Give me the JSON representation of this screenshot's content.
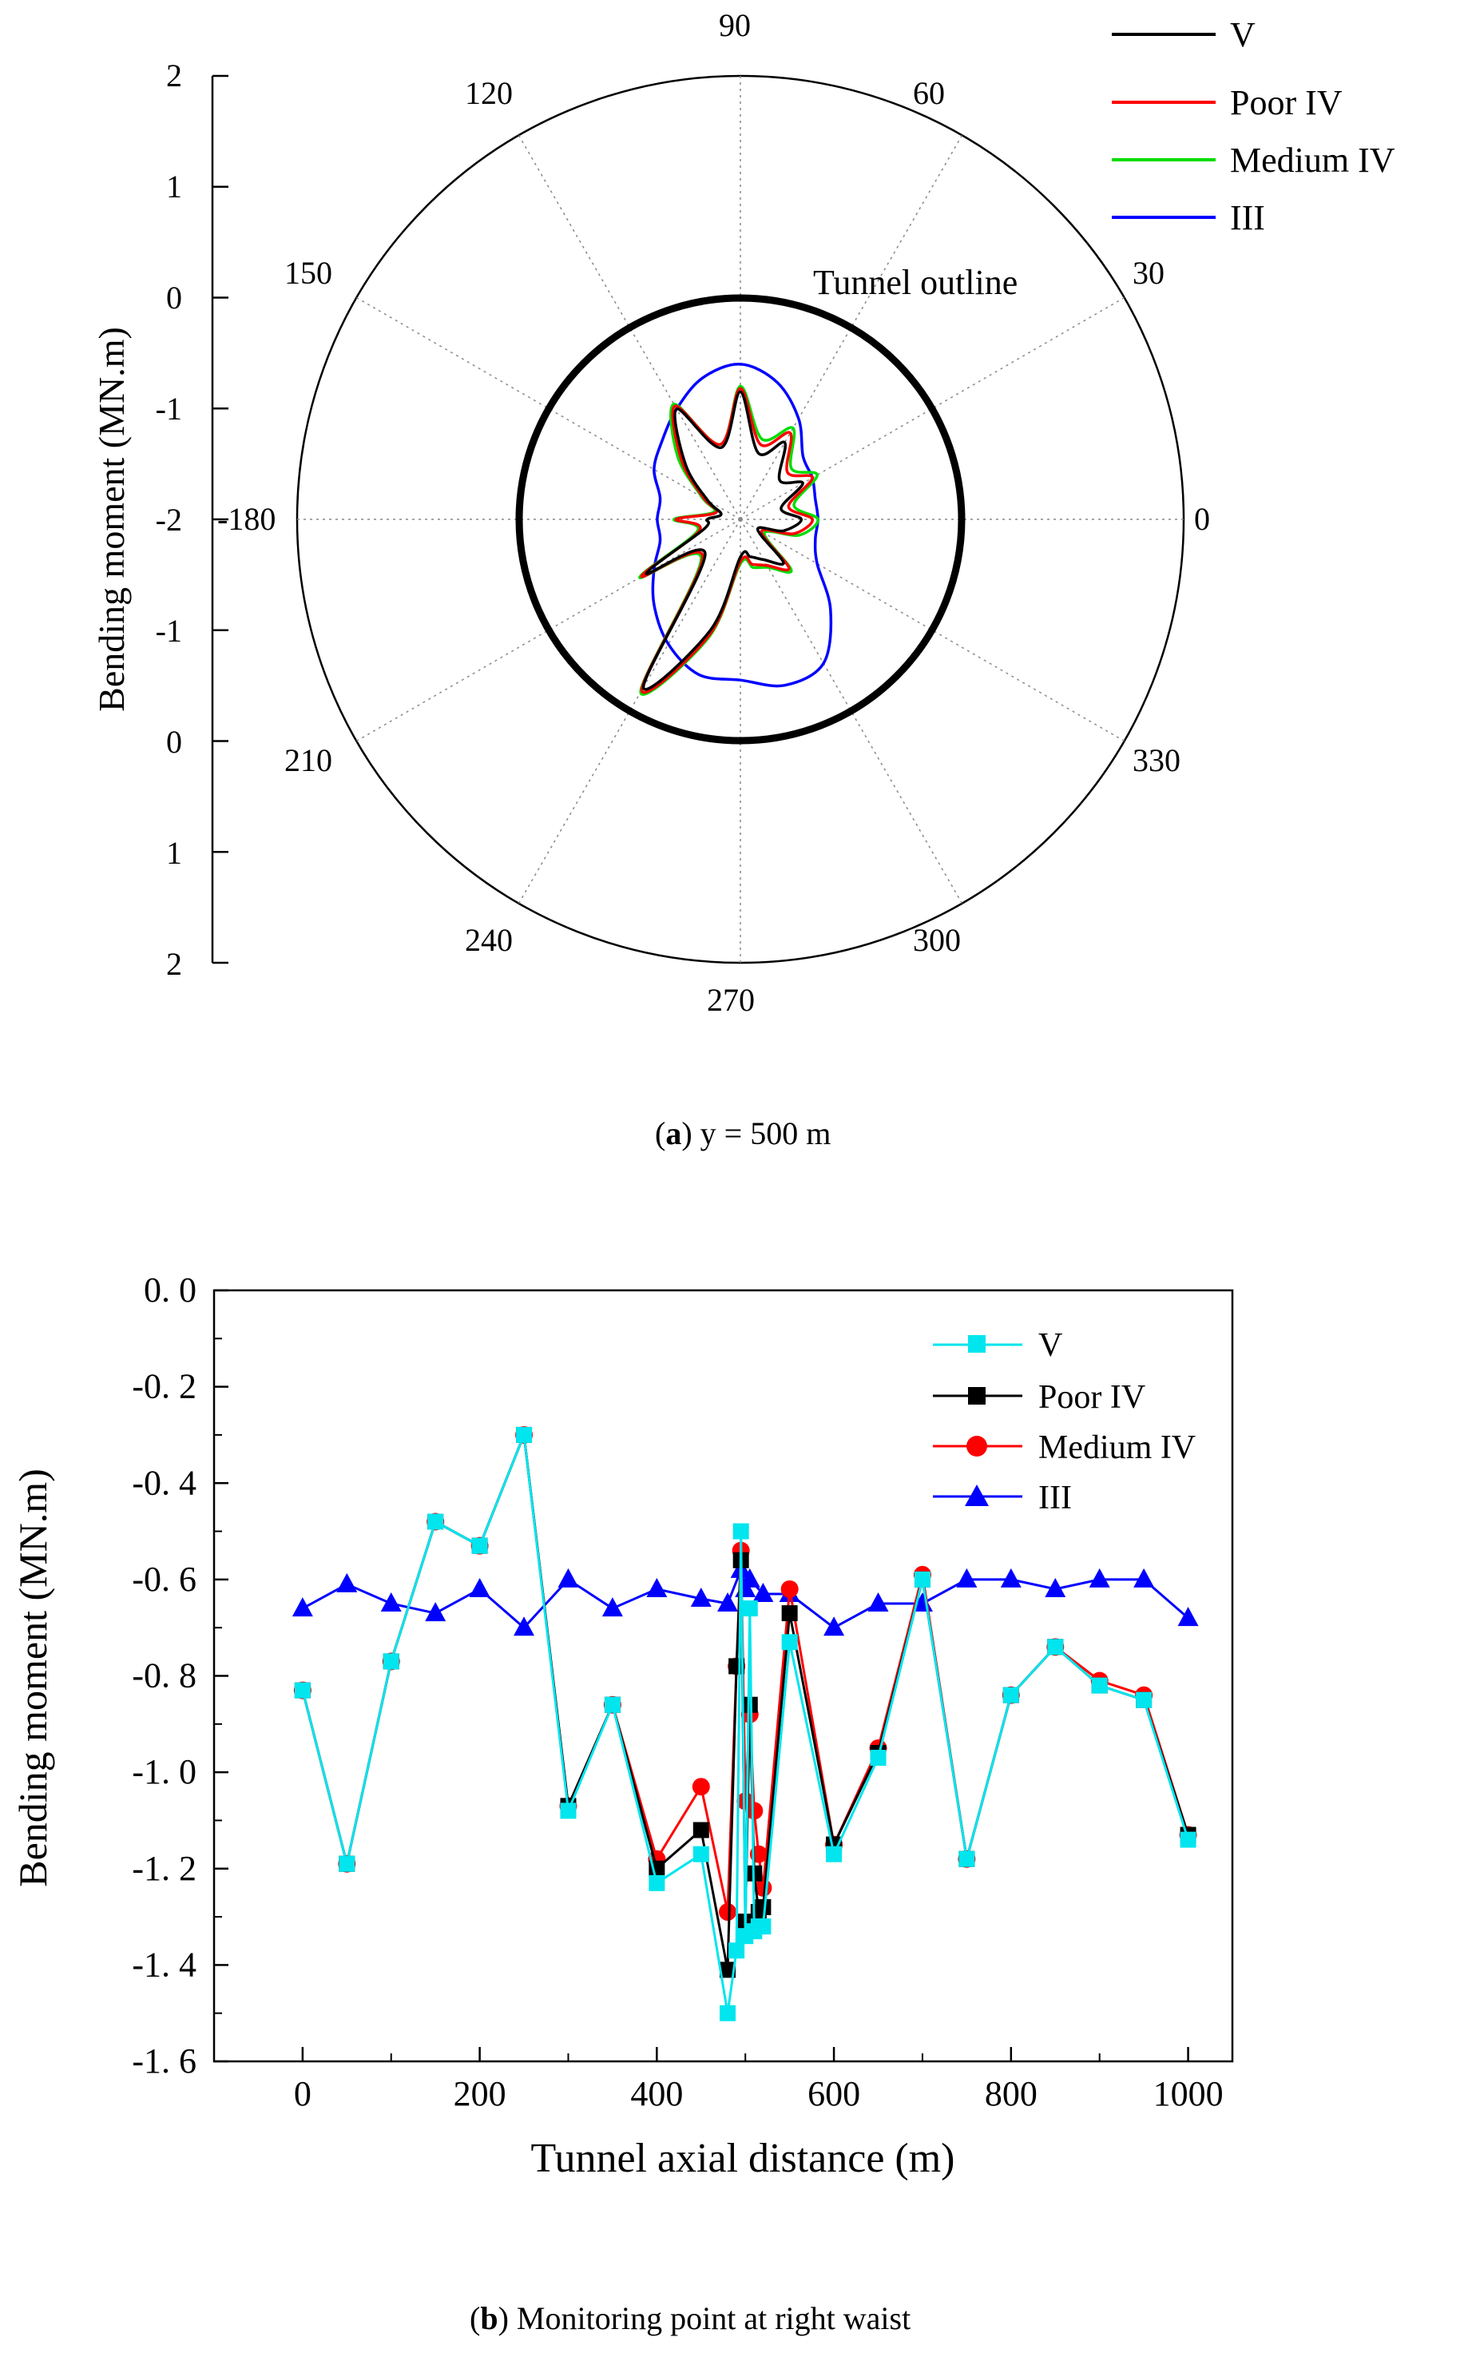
{
  "chart_data": [
    {
      "type": "polar",
      "caption_label": "a",
      "caption_text": ") y = 500 m",
      "caption_open": "(",
      "ylabel": "Bending moment (MN.m)",
      "angle_ticks": [
        "0",
        "30",
        "60",
        "90",
        "120",
        "150",
        "-180",
        "210",
        "240",
        "270",
        "300",
        "330"
      ],
      "radial_ticks": [
        "2",
        "1",
        "0",
        "-1",
        "-2",
        "-1",
        "0",
        "1",
        "2"
      ],
      "annotation": "Tunnel outline",
      "legend": [
        "V",
        "Poor IV",
        "Medium IV",
        "III"
      ],
      "colors": {
        "V": "#000000",
        "Poor IV": "#ff0000",
        "Medium IV": "#00dd00",
        "III": "#0000ff",
        "outline": "#000000"
      },
      "radial_range": [
        -2,
        2
      ],
      "outline_value": 0,
      "series": [
        {
          "name": "III",
          "angles": [
            0,
            15,
            30,
            45,
            60,
            75,
            90,
            105,
            120,
            135,
            150,
            165,
            180,
            195,
            210,
            225,
            240,
            255,
            270,
            285,
            300,
            315,
            330,
            345
          ],
          "values": [
            -1.3,
            -1.3,
            -1.25,
            -1.2,
            -0.95,
            -0.72,
            -0.6,
            -0.68,
            -0.85,
            -1.0,
            -1.1,
            -1.25,
            -1.25,
            -1.25,
            -1.1,
            -0.9,
            -0.7,
            -0.55,
            -0.55,
            -0.45,
            -0.5,
            -0.85,
            -1.2,
            -1.3
          ]
        },
        {
          "name": "Medium IV",
          "angles": [
            0,
            15,
            30,
            45,
            60,
            75,
            90,
            105,
            120,
            135,
            150,
            165,
            180,
            195,
            210,
            225,
            240,
            255,
            270,
            285,
            300,
            315,
            330,
            345
          ],
          "values": [
            -1.3,
            -1.5,
            -1.2,
            -1.35,
            -1.05,
            -1.25,
            -0.8,
            -1.3,
            -0.8,
            -1.2,
            -1.6,
            -1.75,
            -1.4,
            -1.6,
            -0.95,
            -1.5,
            -0.2,
            -0.9,
            -1.6,
            -1.55,
            -1.5,
            -1.35,
            -1.75,
            -1.45
          ]
        },
        {
          "name": "Poor IV",
          "angles": [
            0,
            15,
            30,
            45,
            60,
            75,
            90,
            105,
            120,
            135,
            150,
            165,
            180,
            195,
            210,
            225,
            240,
            255,
            270,
            285,
            300,
            315,
            330,
            345
          ],
          "values": [
            -1.35,
            -1.55,
            -1.25,
            -1.4,
            -1.1,
            -1.3,
            -0.82,
            -1.3,
            -0.82,
            -1.25,
            -1.62,
            -1.77,
            -1.42,
            -1.62,
            -0.97,
            -1.52,
            -0.22,
            -0.92,
            -1.62,
            -1.58,
            -1.52,
            -1.38,
            -1.78,
            -1.5
          ]
        },
        {
          "name": "V",
          "angles": [
            0,
            15,
            30,
            45,
            60,
            75,
            90,
            105,
            120,
            135,
            150,
            165,
            180,
            195,
            210,
            225,
            240,
            255,
            270,
            285,
            300,
            315,
            330,
            345
          ],
          "values": [
            -1.45,
            -1.62,
            -1.35,
            -1.5,
            -1.2,
            -1.38,
            -0.85,
            -1.33,
            -0.85,
            -1.3,
            -1.66,
            -1.82,
            -1.7,
            -1.66,
            -1.02,
            -1.55,
            -0.25,
            -0.97,
            -1.66,
            -1.65,
            -1.58,
            -1.45,
            -1.82,
            -1.6
          ]
        }
      ]
    },
    {
      "type": "line",
      "caption_open": "(",
      "caption_label": "b",
      "caption_text": ") Monitoring point at right waist",
      "xlabel": "Tunnel axial distance (m)",
      "ylabel": "Bending moment (MN.m)",
      "xlim": [
        -100,
        1050
      ],
      "ylim": [
        -1.6,
        0.0
      ],
      "xticks": [
        0,
        200,
        400,
        600,
        800,
        1000
      ],
      "xtick_labels": [
        "0",
        "200",
        "400",
        "600",
        "800",
        "1000"
      ],
      "yticks": [
        0.0,
        -0.2,
        -0.4,
        -0.6,
        -0.8,
        -1.0,
        -1.2,
        -1.4,
        -1.6
      ],
      "ytick_labels": [
        "0. 0",
        "-0. 2",
        "-0. 4",
        "-0. 6",
        "-0. 8",
        "-1. 0",
        "-1. 2",
        "-1. 4",
        "-1. 6"
      ],
      "legend": [
        "V",
        "Poor IV",
        "Medium IV",
        "III"
      ],
      "colors": {
        "V": "#00e5ee",
        "Poor IV": "#000000",
        "Medium IV": "#ff0000",
        "III": "#0000ff"
      },
      "series": [
        {
          "name": "III",
          "marker": "triangle",
          "x": [
            0,
            50,
            100,
            150,
            200,
            250,
            300,
            350,
            400,
            450,
            480,
            495,
            500,
            505,
            520,
            550,
            600,
            650,
            700,
            750,
            800,
            850,
            900,
            950,
            1000
          ],
          "y": [
            -0.66,
            -0.61,
            -0.65,
            -0.67,
            -0.62,
            -0.7,
            -0.6,
            -0.66,
            -0.62,
            -0.64,
            -0.65,
            -0.58,
            -0.62,
            -0.6,
            -0.63,
            -0.63,
            -0.7,
            -0.65,
            -0.65,
            -0.6,
            -0.6,
            -0.62,
            -0.6,
            -0.6,
            -0.68
          ]
        },
        {
          "name": "Medium IV",
          "marker": "circle",
          "x": [
            0,
            50,
            100,
            150,
            200,
            250,
            300,
            350,
            400,
            450,
            480,
            490,
            495,
            500,
            505,
            510,
            515,
            520,
            550,
            600,
            650,
            700,
            750,
            800,
            850,
            900,
            950,
            1000
          ],
          "y": [
            -0.83,
            -1.19,
            -0.77,
            -0.48,
            -0.53,
            -0.3,
            -1.07,
            -0.86,
            -1.18,
            -1.03,
            -1.29,
            -0.78,
            -0.54,
            -1.06,
            -0.88,
            -1.08,
            -1.17,
            -1.24,
            -0.62,
            -1.15,
            -0.95,
            -0.59,
            -1.18,
            -0.84,
            -0.74,
            -0.81,
            -0.84,
            -1.13
          ]
        },
        {
          "name": "Poor IV",
          "marker": "square",
          "x": [
            0,
            50,
            100,
            150,
            200,
            250,
            300,
            350,
            400,
            450,
            480,
            490,
            495,
            500,
            505,
            510,
            515,
            520,
            550,
            600,
            650,
            700,
            750,
            800,
            850,
            900,
            950,
            1000
          ],
          "y": [
            -0.83,
            -1.19,
            -0.77,
            -0.48,
            -0.53,
            -0.3,
            -1.07,
            -0.86,
            -1.2,
            -1.12,
            -1.41,
            -0.78,
            -0.56,
            -1.31,
            -0.86,
            -1.21,
            -1.29,
            -1.28,
            -0.67,
            -1.15,
            -0.96,
            -0.6,
            -1.18,
            -0.84,
            -0.74,
            -0.82,
            -0.85,
            -1.13
          ]
        },
        {
          "name": "V",
          "marker": "square",
          "x": [
            0,
            50,
            100,
            150,
            200,
            250,
            300,
            350,
            400,
            450,
            480,
            490,
            495,
            500,
            505,
            510,
            515,
            520,
            550,
            600,
            650,
            700,
            750,
            800,
            850,
            900,
            950,
            1000
          ],
          "y": [
            -0.83,
            -1.19,
            -0.77,
            -0.48,
            -0.53,
            -0.3,
            -1.08,
            -0.86,
            -1.23,
            -1.17,
            -1.5,
            -1.37,
            -0.5,
            -1.34,
            -0.66,
            -1.33,
            -1.32,
            -1.32,
            -0.73,
            -1.17,
            -0.97,
            -0.6,
            -1.18,
            -0.84,
            -0.74,
            -0.82,
            -0.85,
            -1.14
          ]
        }
      ]
    }
  ]
}
